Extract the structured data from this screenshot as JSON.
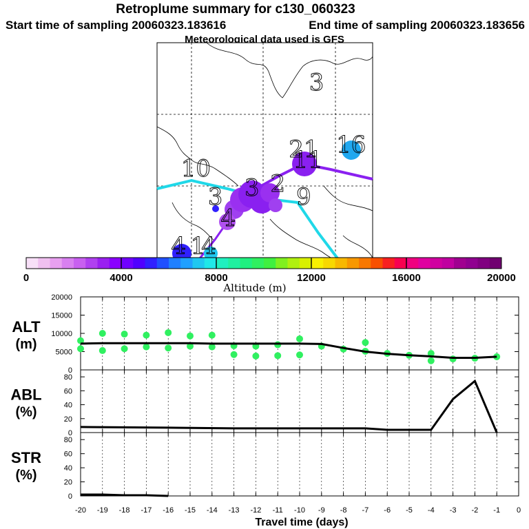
{
  "header": {
    "title": "Retroplume summary for c130_060323",
    "start_label": "Start time of sampling 20060323.183616",
    "end_label": "End time of sampling 20060323.183656",
    "met_label": "Meteorological data used is GFS"
  },
  "map": {
    "day_labels": [
      {
        "text": "3",
        "lon": 0.74,
        "lat": 0.22
      },
      {
        "text": "16",
        "lon": 0.9,
        "lat": 0.51
      },
      {
        "text": "21",
        "lon": 0.68,
        "lat": 0.53
      },
      {
        "text": "11",
        "lon": 0.7,
        "lat": 0.58
      },
      {
        "text": "10",
        "lon": 0.18,
        "lat": 0.62
      },
      {
        "text": "3",
        "lon": 0.44,
        "lat": 0.71
      },
      {
        "text": "2",
        "lon": 0.56,
        "lat": 0.69
      },
      {
        "text": "9",
        "lon": 0.68,
        "lat": 0.75
      },
      {
        "text": "3",
        "lon": 0.27,
        "lat": 0.75
      },
      {
        "text": "4",
        "lon": 0.33,
        "lat": 0.85
      },
      {
        "text": "4",
        "lon": 0.1,
        "lat": 0.98
      },
      {
        "text": "1",
        "lon": 0.19,
        "lat": 0.98
      },
      {
        "text": "4",
        "lon": 0.24,
        "lat": 0.98
      }
    ]
  },
  "colorbar": {
    "ticks": [
      "0",
      "4000",
      "8000",
      "12000",
      "16000",
      "20000"
    ],
    "label": "Altitude (m)",
    "colors": [
      "#f8e0f8",
      "#f0c0f0",
      "#e8a0f0",
      "#d880f0",
      "#c860f0",
      "#b040f0",
      "#9a20f0",
      "#8a00ff",
      "#7000ff",
      "#5000ff",
      "#3020ff",
      "#2050ff",
      "#2080ff",
      "#20a0ff",
      "#20c8f0",
      "#20e8e8",
      "#20f0c0",
      "#20f0a0",
      "#20f080",
      "#30f060",
      "#40f040",
      "#80f020",
      "#b0f010",
      "#d8f000",
      "#f8f000",
      "#f8d800",
      "#f8b800",
      "#f89800",
      "#f87800",
      "#f85000",
      "#f82020",
      "#f80050",
      "#f00080",
      "#e000a0",
      "#d000a0",
      "#c000a0",
      "#a00090",
      "#900090",
      "#800080",
      "#700070"
    ]
  },
  "chart_data": [
    {
      "type": "line",
      "panel": "ALT",
      "title": "ALT",
      "ylabel": "(m)",
      "ylim": [
        0,
        20000
      ],
      "yticks": [
        "0",
        "5000",
        "10000",
        "15000",
        "20000"
      ],
      "xlim": [
        -20,
        0
      ],
      "x": [
        -20,
        -19,
        -18,
        -17,
        -16,
        -15,
        -14,
        -13,
        -12,
        -11,
        -10,
        -9,
        -8,
        -7,
        -6,
        -5,
        -4,
        -3,
        -2,
        -1
      ],
      "series": [
        {
          "name": "median altitude",
          "values": [
            7200,
            7300,
            7300,
            7300,
            7300,
            7300,
            7200,
            7200,
            7200,
            7200,
            7200,
            7100,
            6000,
            5000,
            4400,
            4000,
            3700,
            3300,
            3300,
            3600
          ]
        }
      ],
      "scatter_points": [
        {
          "x": -20,
          "y": 5800
        },
        {
          "x": -20,
          "y": 8000
        },
        {
          "x": -19,
          "y": 5300
        },
        {
          "x": -19,
          "y": 10000
        },
        {
          "x": -18,
          "y": 5800
        },
        {
          "x": -18,
          "y": 9800
        },
        {
          "x": -17,
          "y": 6300
        },
        {
          "x": -17,
          "y": 9500
        },
        {
          "x": -16,
          "y": 6000
        },
        {
          "x": -16,
          "y": 10200
        },
        {
          "x": -15,
          "y": 6500
        },
        {
          "x": -15,
          "y": 9300
        },
        {
          "x": -14,
          "y": 6300
        },
        {
          "x": -14,
          "y": 9500
        },
        {
          "x": -13,
          "y": 6600
        },
        {
          "x": -13,
          "y": 4200
        },
        {
          "x": -12,
          "y": 6500
        },
        {
          "x": -12,
          "y": 3800
        },
        {
          "x": -11,
          "y": 6900
        },
        {
          "x": -11,
          "y": 3900
        },
        {
          "x": -10,
          "y": 8500
        },
        {
          "x": -10,
          "y": 4100
        },
        {
          "x": -9,
          "y": 6500
        },
        {
          "x": -8,
          "y": 5700
        },
        {
          "x": -7,
          "y": 7500
        },
        {
          "x": -7,
          "y": 5100
        },
        {
          "x": -6,
          "y": 4500
        },
        {
          "x": -5,
          "y": 4000
        },
        {
          "x": -4,
          "y": 4500
        },
        {
          "x": -4,
          "y": 2500
        },
        {
          "x": -3,
          "y": 3000
        },
        {
          "x": -2,
          "y": 3200
        },
        {
          "x": -1,
          "y": 3600
        }
      ]
    },
    {
      "type": "line",
      "panel": "ABL",
      "title": "ABL",
      "ylabel": "(%)",
      "ylim": [
        0,
        90
      ],
      "yticks": [
        "0",
        "20",
        "40",
        "60",
        "80"
      ],
      "xlim": [
        -20,
        0
      ],
      "x": [
        -20,
        -16,
        -13,
        -12,
        -11,
        -10,
        -9,
        -8,
        -7,
        -6,
        -5,
        -4,
        -3,
        -2,
        -1
      ],
      "series": [
        {
          "name": "ABL fraction",
          "values": [
            8,
            7,
            6,
            6,
            6,
            6,
            6,
            6,
            6,
            4,
            4,
            4,
            48,
            74,
            0
          ]
        }
      ]
    },
    {
      "type": "line",
      "panel": "STR",
      "title": "STR",
      "ylabel": "(%)",
      "ylim": [
        0,
        90
      ],
      "yticks": [
        "0",
        "20",
        "40",
        "60",
        "80"
      ],
      "xlim": [
        -20,
        0
      ],
      "x": [
        -20,
        -19,
        -18,
        -17,
        -16
      ],
      "series": [
        {
          "name": "STR fraction",
          "values": [
            2,
            2,
            1,
            1,
            0
          ]
        }
      ]
    }
  ],
  "xaxis": {
    "label": "Travel time (days)",
    "ticks": [
      "-20",
      "-19",
      "-18",
      "-17",
      "-16",
      "-15",
      "-14",
      "-13",
      "-12",
      "-11",
      "-10",
      "-9",
      "-8",
      "-7",
      "-6",
      "-5",
      "-4",
      "-3",
      "-2",
      "-1",
      "0"
    ],
    "tick_values": [
      -20,
      -19,
      -18,
      -17,
      -16,
      -15,
      -14,
      -13,
      -12,
      -11,
      -10,
      -9,
      -8,
      -7,
      -6,
      -5,
      -4,
      -3,
      -2,
      -1,
      0
    ]
  }
}
